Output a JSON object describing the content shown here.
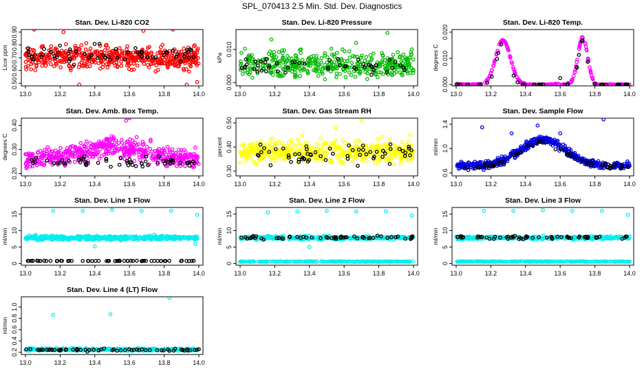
{
  "title": "SPL_070413  2.5 Min. Std. Dev. Diagnostics",
  "chart_data": [
    {
      "type": "scatter",
      "title": "Stan. Dev. Li-820 CO2",
      "ylabel": "Licor ppm",
      "xlim": [
        13.0,
        14.0
      ],
      "ylim": [
        0.48,
        0.92
      ],
      "xticks": [
        "13.0",
        "13.2",
        "13.4",
        "13.6",
        "13.8",
        "14.0"
      ],
      "yticks": [
        {
          "v": 0.5,
          "t": "0.50"
        },
        {
          "v": 0.6,
          "t": "0.60"
        },
        {
          "v": 0.7,
          "t": "0.70"
        },
        {
          "v": 0.8,
          "t": "0.80"
        },
        {
          "v": 0.9,
          "t": "0.90"
        }
      ],
      "series": [
        {
          "color": "#ff0000",
          "profile": "flat",
          "base": 0.7,
          "spread": 0.085,
          "count": 520,
          "outliers": [
            [
              13.05,
              0.92
            ],
            [
              13.22,
              0.9
            ],
            [
              13.31,
              0.49
            ],
            [
              13.68,
              0.91
            ],
            [
              13.85,
              0.92
            ],
            [
              13.93,
              0.49
            ],
            [
              13.99,
              0.51
            ]
          ]
        },
        {
          "color": "#000000",
          "profile": "flat",
          "base": 0.72,
          "spread": 0.07,
          "count": 60,
          "outliers": []
        }
      ]
    },
    {
      "type": "scatter",
      "title": "Stan. Dev. Li-820 Pressure",
      "ylabel": "kPa",
      "xlim": [
        13.0,
        14.0
      ],
      "ylim": [
        -0.001,
        0.016
      ],
      "xticks": [
        "13.0",
        "13.2",
        "13.4",
        "13.6",
        "13.8",
        "14.0"
      ],
      "yticks": [
        {
          "v": 0.0,
          "t": "0.000"
        },
        {
          "v": 0.01,
          "t": "0.010"
        }
      ],
      "series": [
        {
          "color": "#00bb00",
          "profile": "flat",
          "base": 0.0055,
          "spread": 0.0038,
          "count": 420,
          "outliers": [
            [
              13.18,
              0.013
            ],
            [
              13.35,
              0.01
            ],
            [
              13.59,
              0.01
            ],
            [
              13.67,
              0.012
            ],
            [
              13.85,
              0.015
            ],
            [
              13.99,
              0.01
            ]
          ]
        },
        {
          "color": "#000000",
          "profile": "flat",
          "base": 0.005,
          "spread": 0.0025,
          "count": 50,
          "outliers": []
        }
      ]
    },
    {
      "type": "scatter",
      "title": "Stan. Dev. Li-820 Temp.",
      "ylabel": "degrees C",
      "xlim": [
        13.0,
        14.0
      ],
      "ylim": [
        -0.0005,
        0.021
      ],
      "xticks": [
        "13.0",
        "13.2",
        "13.4",
        "13.6",
        "13.8",
        "14.0"
      ],
      "yticks": [
        {
          "v": 0.0,
          "t": "0.000"
        },
        {
          "v": 0.01,
          "t": "0.010"
        },
        {
          "v": 0.02,
          "t": "0.020"
        }
      ],
      "series": [
        {
          "color": "#ff00ff",
          "profile": "peaks",
          "base": 0.0,
          "spread": 0.0008,
          "count": 300,
          "peaks": [
            [
              13.27,
              0.017,
              0.06
            ],
            [
              13.73,
              0.018,
              0.04
            ]
          ],
          "outliers": []
        },
        {
          "color": "#000000",
          "profile": "peaks",
          "base": 0.0,
          "spread": 0.0006,
          "count": 45,
          "peaks": [
            [
              13.27,
              0.016,
              0.05
            ],
            [
              13.73,
              0.017,
              0.035
            ]
          ],
          "outliers": [
            [
              13.6,
              0.0025
            ]
          ]
        }
      ]
    },
    {
      "type": "scatter",
      "title": "Stan. Dev. Amb. Box Temp.",
      "ylabel": "degrees C",
      "xlim": [
        13.0,
        14.0
      ],
      "ylim": [
        0.19,
        0.43
      ],
      "xticks": [
        "13.0",
        "13.2",
        "13.4",
        "13.6",
        "13.8",
        "14.0"
      ],
      "yticks": [
        {
          "v": 0.2,
          "t": "0.20"
        },
        {
          "v": 0.3,
          "t": "0.30"
        },
        {
          "v": 0.4,
          "t": "0.40"
        }
      ],
      "series": [
        {
          "color": "#ff00ff",
          "profile": "hump",
          "base": 0.26,
          "spread": 0.04,
          "count": 520,
          "peaks": [
            [
              13.5,
              0.05,
              0.25
            ]
          ],
          "outliers": [
            [
              13.6,
              0.43
            ],
            [
              13.58,
              0.42
            ]
          ]
        },
        {
          "color": "#000000",
          "profile": "flat",
          "base": 0.25,
          "spread": 0.02,
          "count": 60,
          "outliers": []
        }
      ]
    },
    {
      "type": "scatter",
      "title": "Stan. Dev. Gas Stream RH",
      "ylabel": "percent",
      "xlim": [
        13.0,
        14.0
      ],
      "ylim": [
        0.28,
        0.52
      ],
      "xticks": [
        "13.0",
        "13.2",
        "13.4",
        "13.6",
        "13.8",
        "14.0"
      ],
      "yticks": [
        {
          "v": 0.3,
          "t": "0.30"
        },
        {
          "v": 0.4,
          "t": "0.40"
        },
        {
          "v": 0.5,
          "t": "0.50"
        }
      ],
      "series": [
        {
          "color": "#ffff00",
          "profile": "flat",
          "base": 0.38,
          "spread": 0.045,
          "count": 500,
          "outliers": [
            [
              13.55,
              0.48
            ],
            [
              13.7,
              0.51
            ],
            [
              13.98,
              0.45
            ]
          ]
        },
        {
          "color": "#000000",
          "profile": "flat",
          "base": 0.37,
          "spread": 0.04,
          "count": 60,
          "outliers": []
        }
      ]
    },
    {
      "type": "scatter",
      "title": "Stan. Dev. Sample Flow",
      "ylabel": "ml/min",
      "xlim": [
        13.0,
        14.0
      ],
      "ylim": [
        0.55,
        1.5
      ],
      "xticks": [
        "13.0",
        "13.2",
        "13.4",
        "13.6",
        "13.8",
        "14.0"
      ],
      "yticks": [
        {
          "v": 0.6,
          "t": "0.6"
        },
        {
          "v": 1.0,
          "t": "1.0"
        },
        {
          "v": 1.4,
          "t": "1.4"
        }
      ],
      "series": [
        {
          "color": "#0000dd",
          "profile": "hump",
          "base": 0.72,
          "spread": 0.06,
          "count": 520,
          "peaks": [
            [
              13.5,
              0.43,
              0.18
            ]
          ],
          "outliers": [
            [
              13.15,
              1.35
            ],
            [
              13.32,
              1.25
            ],
            [
              13.47,
              1.38
            ],
            [
              13.85,
              1.48
            ],
            [
              13.6,
              1.25
            ]
          ]
        },
        {
          "color": "#000000",
          "profile": "hump",
          "base": 0.7,
          "spread": 0.05,
          "count": 55,
          "peaks": [
            [
              13.5,
              0.4,
              0.18
            ]
          ],
          "outliers": []
        }
      ]
    },
    {
      "type": "scatter",
      "title": "Stan. Dev. Line 1 Flow",
      "ylabel": "ml/min",
      "xlim": [
        13.0,
        14.0
      ],
      "ylim": [
        -0.5,
        17
      ],
      "xticks": [
        "13.0",
        "13.2",
        "13.4",
        "13.6",
        "13.8",
        "14.0"
      ],
      "yticks": [
        {
          "v": 0,
          "t": "0"
        },
        {
          "v": 5,
          "t": "5"
        },
        {
          "v": 10,
          "t": "10"
        },
        {
          "v": 15,
          "t": "15"
        }
      ],
      "series": [
        {
          "color": "#00eeee",
          "profile": "flat",
          "base": 7.8,
          "spread": 0.6,
          "count": 450,
          "outliers": [
            [
              13.16,
              16
            ],
            [
              13.33,
              16
            ],
            [
              13.5,
              16.3
            ],
            [
              13.67,
              16
            ],
            [
              13.84,
              16
            ],
            [
              13.99,
              14.8
            ],
            [
              13.4,
              5.2
            ],
            [
              13.98,
              6.0
            ]
          ]
        },
        {
          "color": "#000000",
          "profile": "flat",
          "base": 0.8,
          "spread": 0.08,
          "count": 60,
          "outliers": []
        }
      ]
    },
    {
      "type": "scatter",
      "title": "Stan. Dev. Line 2 Flow",
      "ylabel": "ml/min",
      "xlim": [
        13.0,
        14.0
      ],
      "ylim": [
        -0.5,
        17
      ],
      "xticks": [
        "13.0",
        "13.2",
        "13.4",
        "13.6",
        "13.8",
        "14.0"
      ],
      "yticks": [
        {
          "v": 0,
          "t": "0"
        },
        {
          "v": 5,
          "t": "5"
        },
        {
          "v": 10,
          "t": "10"
        },
        {
          "v": 15,
          "t": "15"
        }
      ],
      "series": [
        {
          "color": "#00eeee",
          "profile": "flat",
          "base": 7.8,
          "spread": 0.5,
          "count": 350,
          "outliers": [
            [
              13.16,
              15.5
            ],
            [
              13.33,
              15.8
            ],
            [
              13.5,
              16
            ],
            [
              13.67,
              15.8
            ],
            [
              13.84,
              15.9
            ],
            [
              13.99,
              14.5
            ],
            [
              13.4,
              5.0
            ]
          ]
        },
        {
          "color": "#00eeee",
          "profile": "flat",
          "base": 0.6,
          "spread": 0.1,
          "count": 250,
          "outliers": []
        },
        {
          "color": "#000000",
          "profile": "flat",
          "base": 7.9,
          "spread": 0.5,
          "count": 60,
          "outliers": []
        }
      ]
    },
    {
      "type": "scatter",
      "title": "Stan. Dev. Line 3 Flow",
      "ylabel": "ml/min",
      "xlim": [
        13.0,
        14.0
      ],
      "ylim": [
        -0.5,
        17
      ],
      "xticks": [
        "13.0",
        "13.2",
        "13.4",
        "13.6",
        "13.8",
        "14.0"
      ],
      "yticks": [
        {
          "v": 0,
          "t": "0"
        },
        {
          "v": 5,
          "t": "5"
        },
        {
          "v": 10,
          "t": "10"
        },
        {
          "v": 15,
          "t": "15"
        }
      ],
      "series": [
        {
          "color": "#00eeee",
          "profile": "flat",
          "base": 7.8,
          "spread": 0.45,
          "count": 350,
          "outliers": [
            [
              13.16,
              16
            ],
            [
              13.33,
              16
            ],
            [
              13.5,
              16.2
            ],
            [
              13.67,
              16
            ],
            [
              13.84,
              16
            ],
            [
              13.99,
              14.8
            ]
          ]
        },
        {
          "color": "#00eeee",
          "profile": "flat",
          "base": 0.6,
          "spread": 0.1,
          "count": 250,
          "outliers": []
        },
        {
          "color": "#000000",
          "profile": "flat",
          "base": 7.9,
          "spread": 0.45,
          "count": 60,
          "outliers": []
        }
      ]
    },
    {
      "type": "scatter",
      "title": "Stan. Dev. Line 4 (LT) Flow",
      "ylabel": "ml/min",
      "xlim": [
        13.0,
        14.0
      ],
      "ylim": [
        0.16,
        1.18
      ],
      "xticks": [
        "13.0",
        "13.2",
        "13.4",
        "13.6",
        "13.8",
        "14.0"
      ],
      "yticks": [
        {
          "v": 0.2,
          "t": "0.2"
        },
        {
          "v": 0.4,
          "t": "0.4"
        },
        {
          "v": 0.6,
          "t": "0.6"
        },
        {
          "v": 0.8,
          "t": "0.8"
        },
        {
          "v": 1.0,
          "t": "1.0"
        }
      ],
      "series": [
        {
          "color": "#00eeee",
          "profile": "flat",
          "base": 0.25,
          "spread": 0.02,
          "count": 400,
          "outliers": [
            [
              13.16,
              0.86
            ],
            [
              13.49,
              0.87
            ],
            [
              13.83,
              1.16
            ]
          ]
        },
        {
          "color": "#000000",
          "profile": "flat",
          "base": 0.24,
          "spread": 0.02,
          "count": 60,
          "outliers": []
        }
      ]
    }
  ]
}
